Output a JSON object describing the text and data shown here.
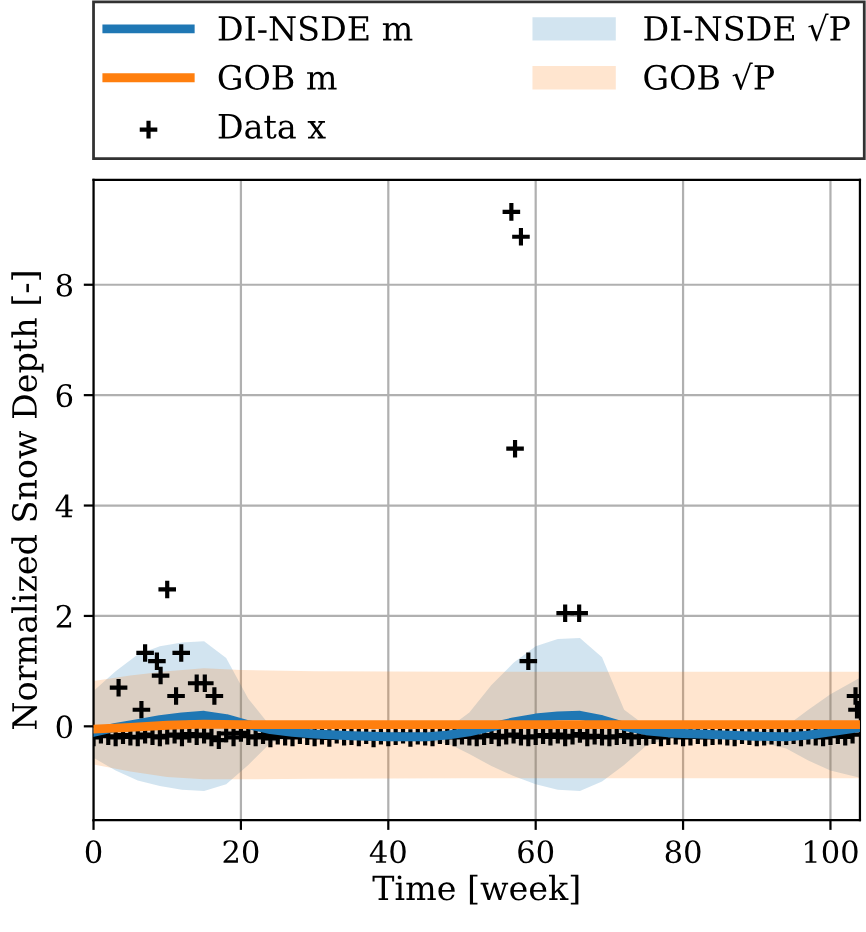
{
  "chart_data": {
    "type": "line",
    "xlabel": "Time [week]",
    "ylabel": "Normalized Snow Depth [-]",
    "xlim": [
      0,
      104
    ],
    "ylim": [
      -1.7,
      9.9
    ],
    "xticks": [
      0,
      20,
      40,
      60,
      80,
      100
    ],
    "yticks": [
      0,
      2,
      4,
      6,
      8
    ],
    "grid": true,
    "legend": "top",
    "annotations": [
      "DI-NSDE √P",
      "GOB √P"
    ],
    "series": [
      {
        "name": "DI-NSDE m",
        "color": "#1f77b4",
        "x": [
          0,
          3,
          6,
          9,
          12,
          15,
          18,
          21,
          24,
          27,
          30,
          35,
          40,
          45,
          48,
          51,
          54,
          57,
          60,
          63,
          66,
          69,
          72,
          75,
          78,
          82,
          86,
          90,
          94,
          97,
          100,
          104
        ],
        "values": [
          -0.11,
          -0.02,
          0.05,
          0.12,
          0.17,
          0.2,
          0.14,
          0.03,
          -0.06,
          -0.11,
          -0.14,
          -0.17,
          -0.19,
          -0.19,
          -0.16,
          -0.1,
          -0.01,
          0.08,
          0.15,
          0.19,
          0.2,
          0.12,
          0.0,
          -0.08,
          -0.12,
          -0.14,
          -0.16,
          -0.18,
          -0.19,
          -0.16,
          -0.1,
          -0.02
        ],
        "lower": [
          -0.57,
          -0.8,
          -0.98,
          -1.08,
          -1.15,
          -1.17,
          -1.05,
          -0.7,
          -0.3,
          -0.2,
          -0.22,
          -0.25,
          -0.27,
          -0.28,
          -0.3,
          -0.5,
          -0.72,
          -0.9,
          -1.05,
          -1.15,
          -1.17,
          -1.0,
          -0.7,
          -0.35,
          -0.22,
          -0.22,
          -0.24,
          -0.27,
          -0.4,
          -0.62,
          -0.8,
          -0.93
        ],
        "upper": [
          0.64,
          1.0,
          1.3,
          1.45,
          1.52,
          1.54,
          1.24,
          0.5,
          0.0,
          -0.05,
          -0.06,
          -0.09,
          -0.1,
          -0.1,
          -0.05,
          0.25,
          0.75,
          1.15,
          1.45,
          1.58,
          1.6,
          1.25,
          0.3,
          0.0,
          -0.04,
          -0.06,
          -0.08,
          -0.1,
          0.0,
          0.3,
          0.58,
          0.88
        ]
      },
      {
        "name": "GOB m",
        "color": "#ff7f0e",
        "x": [
          0,
          5,
          10,
          15,
          20,
          30,
          50,
          70,
          90,
          104
        ],
        "values": [
          -0.05,
          -0.02,
          0.02,
          0.04,
          0.03,
          0.03,
          0.03,
          0.03,
          0.03,
          0.03
        ],
        "lower": [
          -0.69,
          -0.82,
          -0.92,
          -0.96,
          -0.96,
          -0.95,
          -0.94,
          -0.94,
          -0.94,
          -0.94
        ],
        "upper": [
          0.82,
          0.92,
          1.0,
          1.05,
          1.02,
          1.0,
          0.99,
          0.99,
          0.99,
          0.99
        ]
      },
      {
        "name": "Data x",
        "type": "scatter",
        "color": "#000000",
        "marker": "cross",
        "x": [
          0,
          1,
          2,
          3,
          4,
          5,
          6,
          7,
          8,
          9,
          10,
          11,
          12,
          13,
          14,
          15,
          16,
          17,
          18,
          19,
          20,
          21,
          22,
          23,
          24,
          25,
          26,
          27,
          28,
          29,
          30,
          31,
          32,
          33,
          34,
          35,
          36,
          37,
          38,
          39,
          40,
          41,
          42,
          43,
          44,
          45,
          46,
          47,
          48,
          49,
          50,
          51,
          52,
          53,
          54,
          55,
          56,
          57,
          58,
          59,
          60,
          61,
          62,
          63,
          64,
          65,
          66,
          67,
          68,
          69,
          70,
          71,
          72,
          73,
          74,
          75,
          76,
          77,
          78,
          79,
          80,
          81,
          82,
          83,
          84,
          85,
          86,
          87,
          88,
          89,
          90,
          91,
          92,
          93,
          94,
          95,
          96,
          97,
          98,
          99,
          100,
          101,
          102,
          103,
          3.4,
          7.0,
          8.6,
          9.1,
          10.0,
          11.9,
          11.2,
          14.0,
          15.1,
          16.4,
          6.5,
          56.7,
          58.0,
          57.2,
          59.0,
          64.0,
          65.9,
          103.4,
          103.6
        ],
        "values": [
          -0.2,
          -0.15,
          -0.18,
          -0.2,
          -0.16,
          -0.19,
          -0.2,
          -0.15,
          -0.18,
          -0.2,
          -0.17,
          -0.15,
          -0.2,
          -0.14,
          -0.18,
          -0.15,
          -0.2,
          -0.25,
          -0.13,
          -0.2,
          -0.12,
          -0.18,
          -0.2,
          -0.16,
          -0.22,
          -0.17,
          -0.19,
          -0.2,
          -0.16,
          -0.18,
          -0.2,
          -0.17,
          -0.21,
          -0.15,
          -0.19,
          -0.18,
          -0.2,
          -0.16,
          -0.22,
          -0.17,
          -0.2,
          -0.18,
          -0.15,
          -0.21,
          -0.17,
          -0.19,
          -0.2,
          -0.16,
          -0.18,
          -0.2,
          -0.17,
          -0.19,
          -0.2,
          -0.18,
          -0.16,
          -0.2,
          -0.17,
          -0.15,
          -0.19,
          -0.2,
          -0.18,
          -0.16,
          -0.19,
          -0.15,
          -0.2,
          -0.17,
          -0.14,
          -0.2,
          -0.17,
          -0.19,
          -0.2,
          -0.18,
          -0.16,
          -0.2,
          -0.18,
          -0.19,
          -0.16,
          -0.2,
          -0.18,
          -0.17,
          -0.2,
          -0.19,
          -0.16,
          -0.2,
          -0.18,
          -0.17,
          -0.19,
          -0.2,
          -0.16,
          -0.18,
          -0.2,
          -0.19,
          -0.17,
          -0.2,
          -0.18,
          -0.16,
          -0.2,
          -0.17,
          -0.19,
          -0.2,
          -0.18,
          -0.16,
          -0.19,
          -0.15,
          0.7,
          1.33,
          1.18,
          0.92,
          2.48,
          1.33,
          0.55,
          0.78,
          0.78,
          0.55,
          0.3,
          9.32,
          8.87,
          5.03,
          1.18,
          2.05,
          2.05,
          0.55,
          0.3
        ]
      }
    ]
  }
}
